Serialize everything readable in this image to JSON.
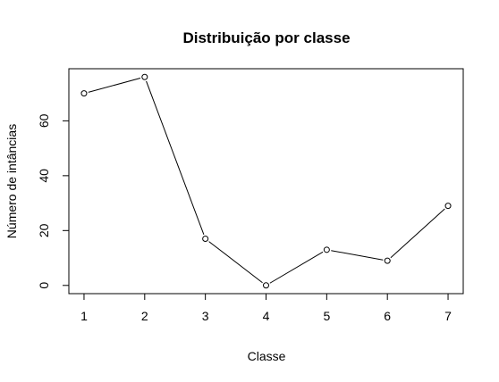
{
  "chart_data": {
    "type": "line",
    "title": "Distribuição por classe",
    "xlabel": "Classe",
    "ylabel": "Número de intâncias",
    "x": [
      1,
      2,
      3,
      4,
      5,
      6,
      7
    ],
    "x_tick_labels": [
      "1",
      "2",
      "3",
      "4",
      "5",
      "6",
      "7"
    ],
    "values": [
      70,
      76,
      17,
      0,
      13,
      9,
      29
    ],
    "y_ticks": [
      0,
      20,
      40,
      60
    ],
    "y_tick_labels": [
      "0",
      "20",
      "40",
      "60"
    ],
    "xlim": [
      0.75,
      7.25
    ],
    "ylim": [
      -3,
      79
    ],
    "grid": false,
    "marker": "open-circle",
    "line_color": "#000000"
  }
}
